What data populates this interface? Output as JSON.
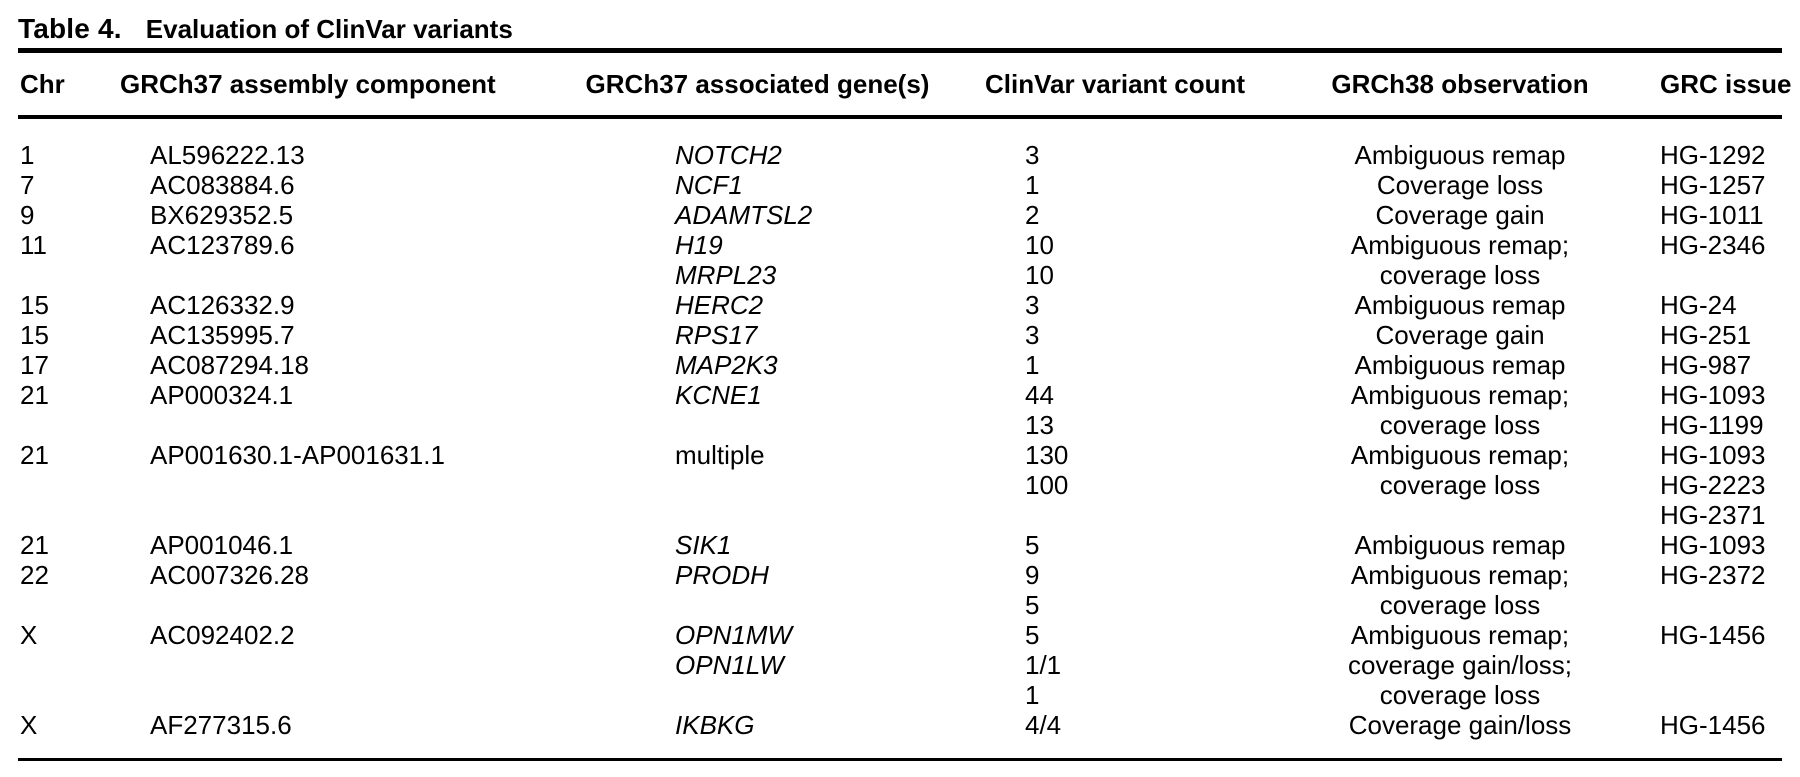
{
  "title": {
    "label": "Table 4.",
    "text": "Evaluation of ClinVar variants"
  },
  "table": {
    "columns": [
      "Chr",
      "GRCh37 assembly component",
      "GRCh37 associated gene(s)",
      "ClinVar variant count",
      "GRCh38 observation",
      "GRC issue"
    ],
    "rows": [
      {
        "chr": "1",
        "component": "AL596222.13",
        "gene": "NOTCH2",
        "count": "3",
        "observation": "Ambiguous remap",
        "issue": "HG-1292"
      },
      {
        "chr": "7",
        "component": "AC083884.6",
        "gene": "NCF1",
        "count": "1",
        "observation": "Coverage loss",
        "issue": "HG-1257"
      },
      {
        "chr": "9",
        "component": "BX629352.5",
        "gene": "ADAMTSL2",
        "count": "2",
        "observation": "Coverage gain",
        "issue": "HG-1011"
      },
      {
        "chr": "11",
        "component": "AC123789.6",
        "gene": "H19",
        "count": "10",
        "observation": "Ambiguous remap;",
        "issue": "HG-2346"
      },
      {
        "gene": "MRPL23",
        "count": "10",
        "observation": "coverage loss"
      },
      {
        "chr": "15",
        "component": "AC126332.9",
        "gene": "HERC2",
        "count": "3",
        "observation": "Ambiguous remap",
        "issue": "HG-24"
      },
      {
        "chr": "15",
        "component": "AC135995.7",
        "gene": "RPS17",
        "count": "3",
        "observation": "Coverage gain",
        "issue": "HG-251"
      },
      {
        "chr": "17",
        "component": "AC087294.18",
        "gene": "MAP2K3",
        "count": "1",
        "observation": "Ambiguous remap",
        "issue": "HG-987"
      },
      {
        "chr": "21",
        "component": "AP000324.1",
        "gene": "KCNE1",
        "count": "44",
        "observation": "Ambiguous remap;",
        "issue": "HG-1093"
      },
      {
        "count": "13",
        "observation": "coverage loss",
        "issue": "HG-1199"
      },
      {
        "chr": "21",
        "component": "AP001630.1-AP001631.1",
        "gene": "multiple",
        "count": "130",
        "observation": "Ambiguous remap;",
        "issue": "HG-1093"
      },
      {
        "count": "100",
        "observation": "coverage loss",
        "issue": "HG-2223"
      },
      {
        "issue": "HG-2371"
      },
      {
        "chr": "21",
        "component": "AP001046.1",
        "gene": "SIK1",
        "count": "5",
        "observation": "Ambiguous remap",
        "issue": "HG-1093"
      },
      {
        "chr": "22",
        "component": "AC007326.28",
        "gene": "PRODH",
        "count": "9",
        "observation": "Ambiguous remap;",
        "issue": "HG-2372"
      },
      {
        "count": "5",
        "observation": "coverage loss"
      },
      {
        "chr": "X",
        "component": "AC092402.2",
        "gene": "OPN1MW",
        "count": "5",
        "observation": "Ambiguous remap;",
        "issue": "HG-1456"
      },
      {
        "gene": "OPN1LW",
        "count": "1/1",
        "observation": "coverage gain/loss;"
      },
      {
        "count": "1",
        "observation": "coverage loss"
      },
      {
        "chr": "X",
        "component": "AF277315.6",
        "gene": "IKBKG",
        "count": "4/4",
        "observation": "Coverage gain/loss",
        "issue": "HG-1456"
      }
    ]
  }
}
